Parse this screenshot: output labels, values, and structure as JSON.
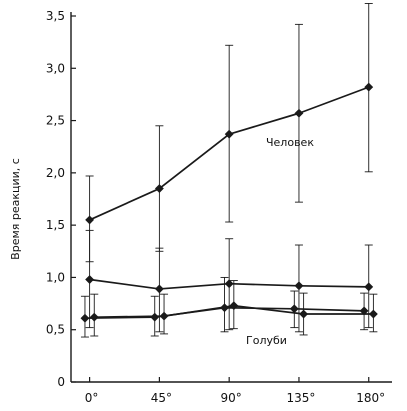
{
  "chart_data": {
    "type": "line",
    "title": "",
    "xlabel": "",
    "ylabel": "Время реакции, с",
    "categories": [
      "0°",
      "45°",
      "90°",
      "135°",
      "180°"
    ],
    "ylim": [
      0,
      3.5
    ],
    "yticks": [
      "0",
      "0,5",
      "1,0",
      "1,5",
      "2,0",
      "2,5",
      "3,0",
      "3,5"
    ],
    "grid": false,
    "series": [
      {
        "name": "Человек",
        "label_on_chart": "Человек",
        "x": [
          0,
          45,
          90,
          135,
          180
        ],
        "values": [
          1.55,
          1.85,
          2.37,
          2.57,
          2.82
        ],
        "err_low": [
          1.15,
          1.25,
          1.53,
          1.72,
          2.01
        ],
        "err_high": [
          1.97,
          2.45,
          3.22,
          3.42,
          3.62
        ]
      },
      {
        "name": "Голуби",
        "label_on_chart": "",
        "x": [
          0,
          45,
          90,
          135,
          180
        ],
        "values": [
          0.98,
          0.89,
          0.94,
          0.92,
          0.91
        ],
        "err_low": [
          0.52,
          0.48,
          0.5,
          0.48,
          0.52
        ],
        "err_high": [
          1.45,
          1.28,
          1.37,
          1.31,
          1.31
        ]
      },
      {
        "name": "Голуби",
        "label_on_chart": "",
        "x": [
          -3,
          42,
          87,
          132,
          177
        ],
        "values": [
          0.61,
          0.62,
          0.71,
          0.7,
          0.68
        ],
        "err_low": [
          0.43,
          0.44,
          0.48,
          0.52,
          0.5
        ],
        "err_high": [
          0.82,
          0.82,
          1.0,
          0.87,
          0.85
        ]
      },
      {
        "name": "Голуби",
        "label_on_chart": "Голуби",
        "x": [
          3,
          48,
          93,
          138,
          183
        ],
        "values": [
          0.62,
          0.63,
          0.73,
          0.65,
          0.65
        ],
        "err_low": [
          0.44,
          0.46,
          0.51,
          0.45,
          0.48
        ],
        "err_high": [
          0.84,
          0.84,
          0.97,
          0.85,
          0.84
        ]
      }
    ],
    "colors": {
      "line": "#1a1a1a",
      "marker": "#1a1a1a"
    }
  }
}
